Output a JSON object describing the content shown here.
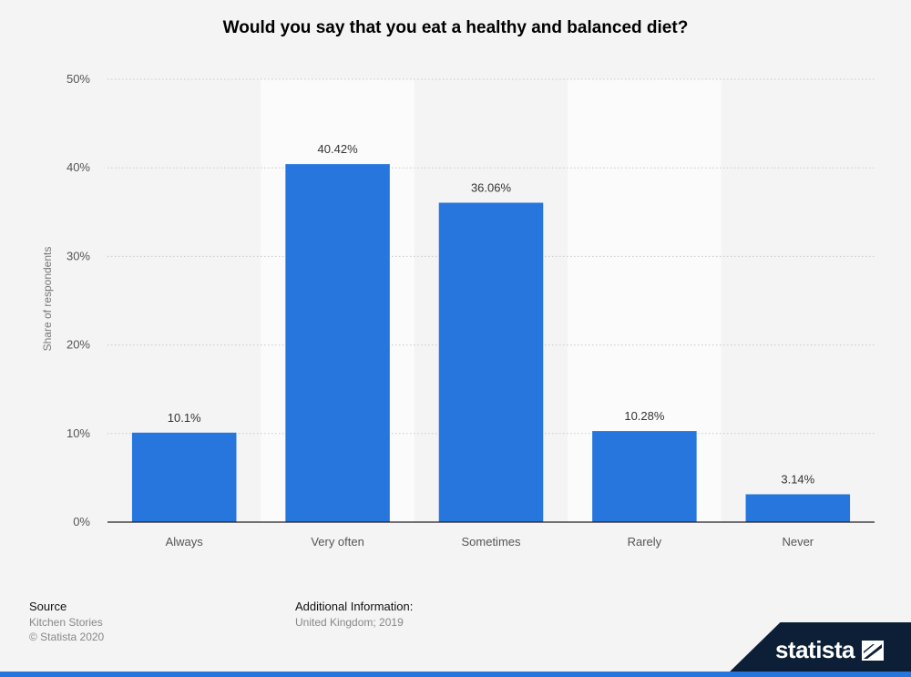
{
  "chart_data": {
    "type": "bar",
    "title": "Would you say that you eat a healthy and balanced diet?",
    "categories": [
      "Always",
      "Very often",
      "Sometimes",
      "Rarely",
      "Never"
    ],
    "values": [
      10.1,
      40.42,
      36.06,
      10.28,
      3.14
    ],
    "value_labels": [
      "10.1%",
      "40.42%",
      "36.06%",
      "10.28%",
      "3.14%"
    ],
    "ylabel": "Share of respondents",
    "ylim": [
      0,
      50
    ],
    "yticks": [
      0,
      10,
      20,
      30,
      40,
      50
    ],
    "ytick_labels": [
      "0%",
      "10%",
      "20%",
      "30%",
      "40%",
      "50%"
    ],
    "bar_color": "#2676de",
    "grid": true
  },
  "footer": {
    "source_heading": "Source",
    "source_name": "Kitchen Stories",
    "copyright": "© Statista 2020",
    "additional_heading": "Additional Information:",
    "additional_text": "United Kingdom; 2019"
  },
  "brand": {
    "name": "statista",
    "icon": "statista-logo-icon"
  }
}
